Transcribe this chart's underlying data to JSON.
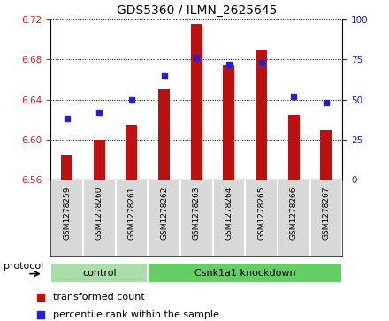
{
  "title": "GDS5360 / ILMN_2625645",
  "samples": [
    "GSM1278259",
    "GSM1278260",
    "GSM1278261",
    "GSM1278262",
    "GSM1278263",
    "GSM1278264",
    "GSM1278265",
    "GSM1278266",
    "GSM1278267"
  ],
  "transformed_count": [
    6.585,
    6.6,
    6.615,
    6.65,
    6.715,
    6.675,
    6.69,
    6.625,
    6.61
  ],
  "percentile_rank": [
    38,
    42,
    50,
    65,
    76,
    72,
    73,
    52,
    48
  ],
  "ylim_left": [
    6.56,
    6.72
  ],
  "ylim_right": [
    0,
    100
  ],
  "yticks_left": [
    6.56,
    6.6,
    6.64,
    6.68,
    6.72
  ],
  "yticks_right": [
    0,
    25,
    50,
    75,
    100
  ],
  "bar_color": "#bb1111",
  "dot_color": "#2222cc",
  "bar_bottom": 6.56,
  "protocol_groups": [
    {
      "label": "control",
      "start": 0,
      "end": 3,
      "color": "#aaddaa"
    },
    {
      "label": "Csnk1a1 knockdown",
      "start": 3,
      "end": 9,
      "color": "#66cc66"
    }
  ],
  "legend_items": [
    {
      "label": "transformed count",
      "color": "#bb1111"
    },
    {
      "label": "percentile rank within the sample",
      "color": "#2222cc"
    }
  ],
  "bg_color": "#d8d8d8",
  "title_fontsize": 10,
  "tick_fontsize": 7.5,
  "sample_fontsize": 6.5
}
